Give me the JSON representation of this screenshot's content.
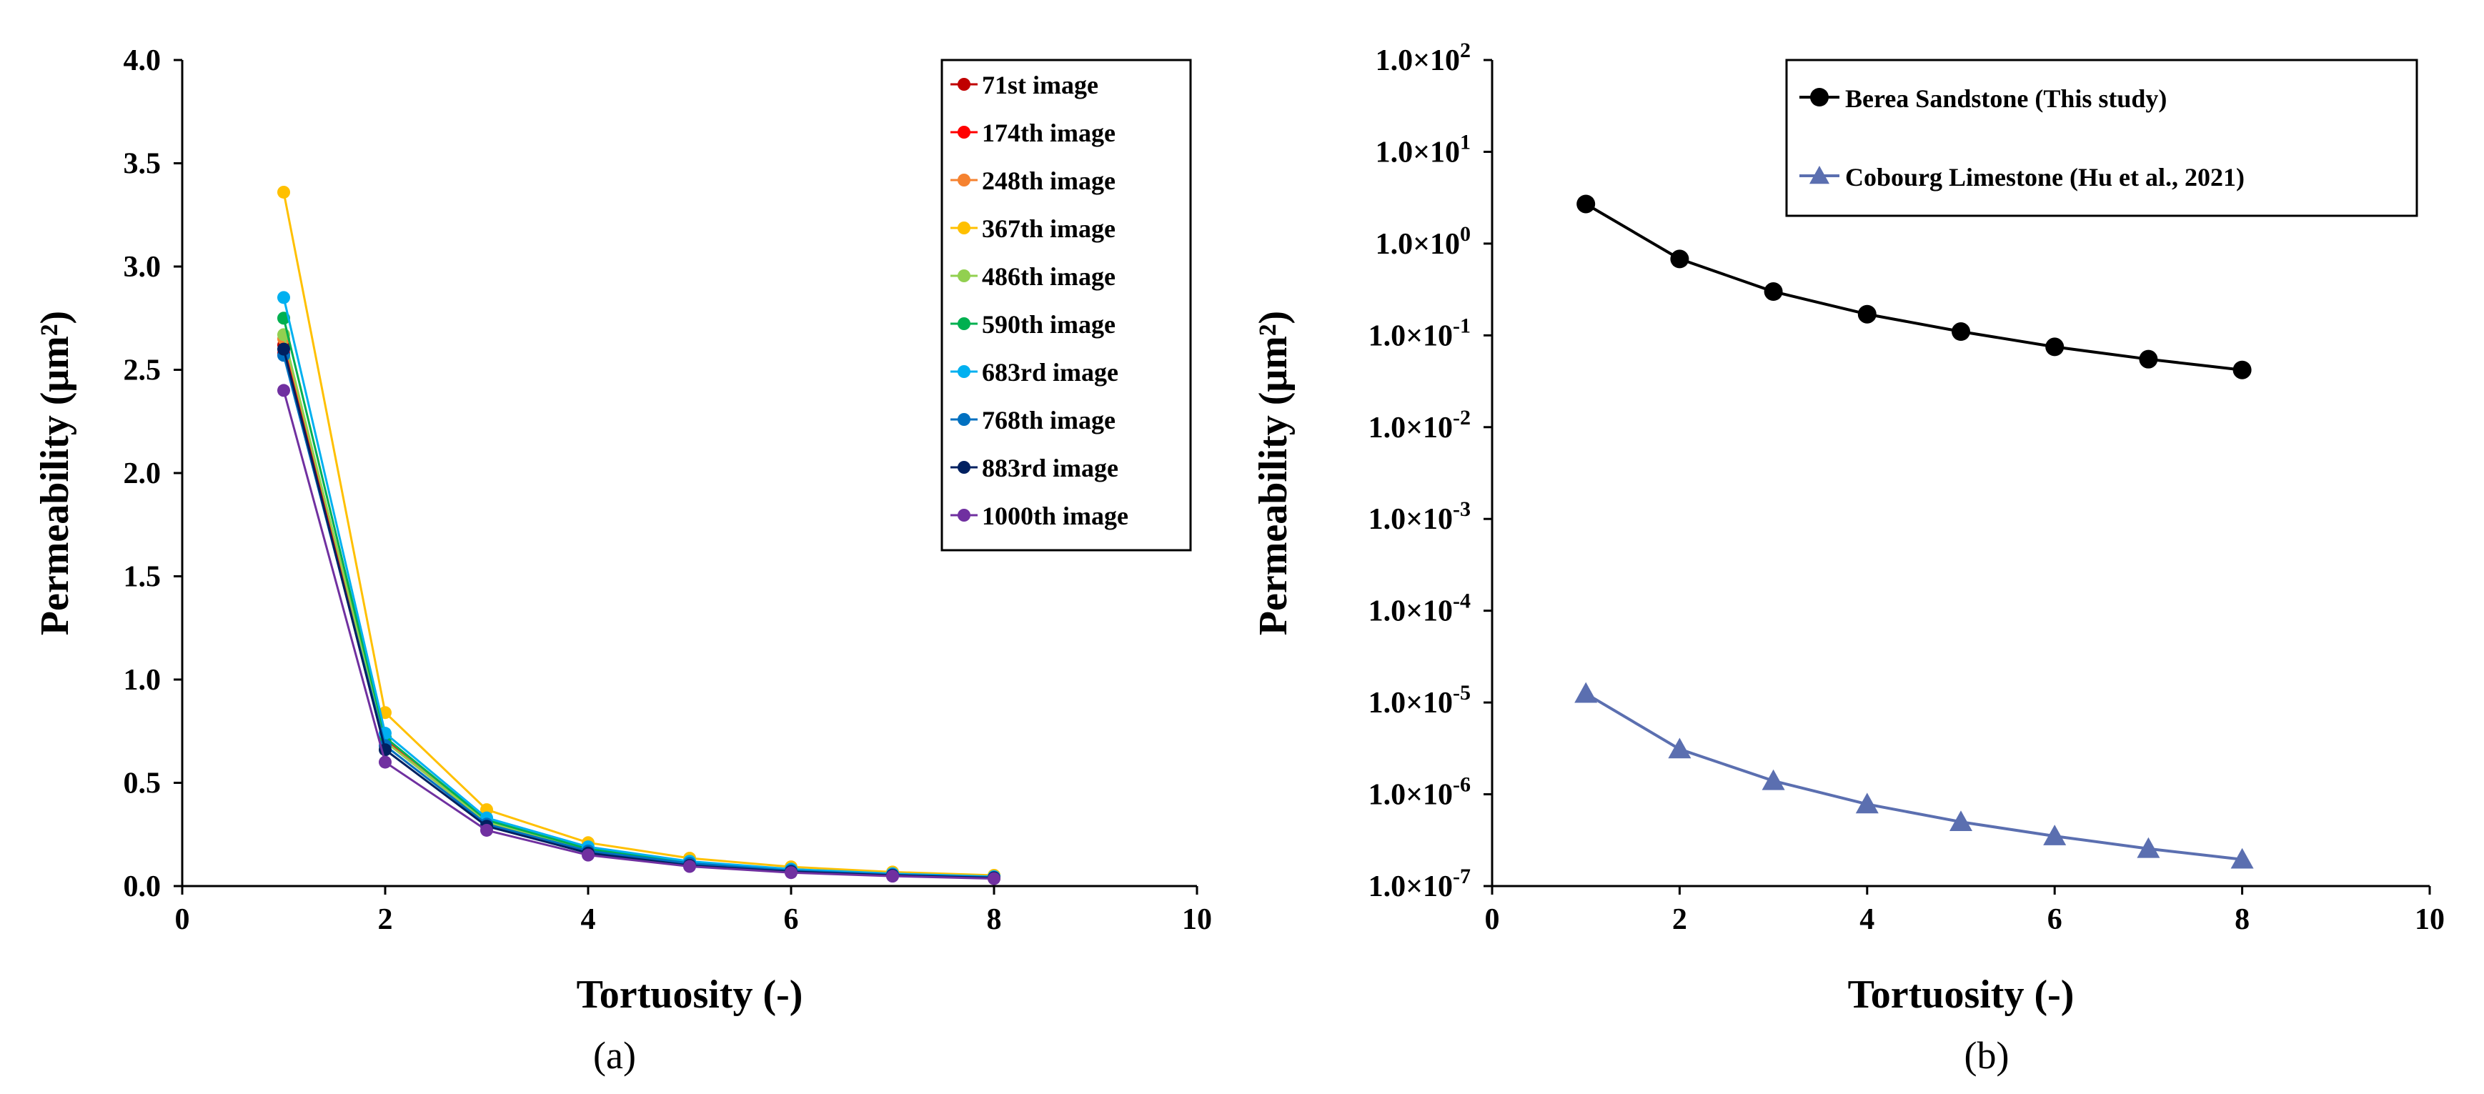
{
  "chart_data": [
    {
      "type": "line",
      "panel_label": "(a)",
      "xlabel": "Tortuosity (-)",
      "ylabel": "Permeability (μm²)",
      "xlim": [
        0,
        10
      ],
      "ylim": [
        0,
        4
      ],
      "xticks": [
        "0",
        "2",
        "4",
        "6",
        "8",
        "10"
      ],
      "yticks": [
        "0.0",
        "0.5",
        "1.0",
        "1.5",
        "2.0",
        "2.5",
        "3.0",
        "3.5",
        "4.0"
      ],
      "x": [
        1,
        2,
        3,
        4,
        5,
        6,
        7,
        8
      ],
      "legend_position": "top-right",
      "series": [
        {
          "name": "71st image",
          "color": "#c00000",
          "values": [
            2.62,
            0.7,
            0.31,
            0.17,
            0.11,
            0.075,
            0.055,
            0.04
          ]
        },
        {
          "name": "174th image",
          "color": "#ff0000",
          "values": [
            2.58,
            0.71,
            0.31,
            0.18,
            0.11,
            0.078,
            0.057,
            0.043
          ]
        },
        {
          "name": "248th image",
          "color": "#f58230",
          "values": [
            2.65,
            0.72,
            0.31,
            0.17,
            0.11,
            0.077,
            0.056,
            0.042
          ]
        },
        {
          "name": "367th image",
          "color": "#ffc000",
          "values": [
            3.36,
            0.84,
            0.37,
            0.21,
            0.135,
            0.093,
            0.068,
            0.052
          ]
        },
        {
          "name": "486th image",
          "color": "#92d050",
          "values": [
            2.67,
            0.7,
            0.31,
            0.17,
            0.11,
            0.076,
            0.055,
            0.042
          ]
        },
        {
          "name": "590th image",
          "color": "#00b050",
          "values": [
            2.75,
            0.72,
            0.32,
            0.18,
            0.115,
            0.079,
            0.058,
            0.044
          ]
        },
        {
          "name": "683rd image",
          "color": "#00b0f0",
          "values": [
            2.85,
            0.74,
            0.33,
            0.19,
            0.12,
            0.082,
            0.06,
            0.046
          ]
        },
        {
          "name": "768th image",
          "color": "#0070c0",
          "values": [
            2.57,
            0.68,
            0.3,
            0.17,
            0.11,
            0.075,
            0.055,
            0.042
          ]
        },
        {
          "name": "883rd image",
          "color": "#002060",
          "values": [
            2.6,
            0.66,
            0.29,
            0.16,
            0.1,
            0.07,
            0.052,
            0.04
          ]
        },
        {
          "name": "1000th image",
          "color": "#7030a0",
          "values": [
            2.4,
            0.6,
            0.27,
            0.15,
            0.095,
            0.065,
            0.048,
            0.036
          ]
        }
      ]
    },
    {
      "type": "line",
      "panel_label": "(b)",
      "xlabel": "Tortuosity (-)",
      "ylabel": "Permeability (μm²)",
      "yscale": "log",
      "xlim": [
        0,
        10
      ],
      "ylim_log10": [
        -7,
        2
      ],
      "xticks": [
        "0",
        "2",
        "4",
        "6",
        "8",
        "10"
      ],
      "yticks": [
        "1.0×10^-7",
        "1.0×10^-6",
        "1.0×10^-5",
        "1.0×10^-4",
        "1.0×10^-3",
        "1.0×10^-2",
        "1.0×10^-1",
        "1.0×10^0",
        "1.0×10^1",
        "1.0×10^2"
      ],
      "x": [
        1,
        2,
        3,
        4,
        5,
        6,
        7,
        8
      ],
      "legend_position": "top-right",
      "series": [
        {
          "name": "Berea Sandstone (This study)",
          "color": "#000000",
          "marker": "circle",
          "values": [
            2.7,
            0.68,
            0.3,
            0.17,
            0.11,
            0.075,
            0.055,
            0.042
          ]
        },
        {
          "name": "Cobourg Limestone (Hu et al., 2021)",
          "color": "#5b6fb0",
          "marker": "triangle",
          "values": [
            1.25e-05,
            3.1e-06,
            1.4e-06,
            7.8e-07,
            5e-07,
            3.5e-07,
            2.55e-07,
            1.95e-07
          ]
        }
      ]
    }
  ]
}
